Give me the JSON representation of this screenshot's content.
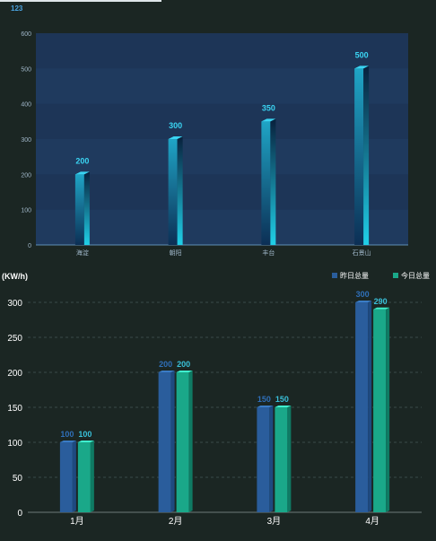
{
  "header": {
    "badge": "123"
  },
  "chart_data": [
    {
      "type": "bar",
      "categories": [
        "海淀",
        "朝阳",
        "丰台",
        "石景山"
      ],
      "values": [
        200,
        300,
        350,
        500
      ],
      "ylim": [
        0,
        600
      ],
      "yticks": [
        0,
        100,
        200,
        300,
        400,
        500,
        600
      ],
      "grid": false,
      "colors": {
        "bar_top": "#1f8fb0",
        "bar_bottom": "#0d3b5c",
        "label": "#3ad4f2",
        "plot_bg": "#1e3a5f"
      }
    },
    {
      "type": "bar",
      "ylabel": "(KW/h)",
      "categories": [
        "1月",
        "2月",
        "3月",
        "4月"
      ],
      "series": [
        {
          "name": "昨日总量",
          "values": [
            100,
            200,
            150,
            300
          ],
          "color": "#2a5d9c"
        },
        {
          "name": "今日总量",
          "values": [
            100,
            200,
            150,
            290
          ],
          "color": "#1aa889"
        }
      ],
      "ylim": [
        0,
        300
      ],
      "yticks": [
        0,
        50,
        100,
        150,
        200,
        250,
        300
      ],
      "grid": true,
      "legend": "top-right"
    }
  ]
}
